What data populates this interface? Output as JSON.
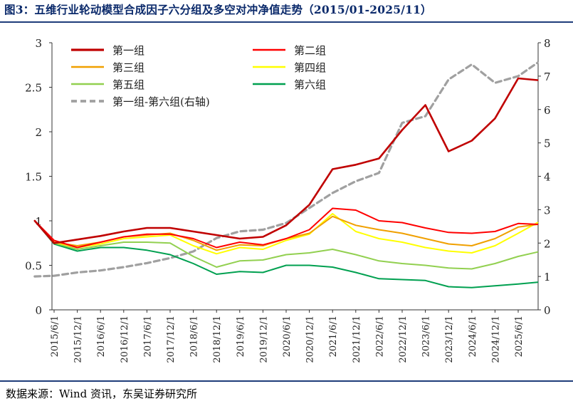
{
  "header": {
    "title": "图3：五维行业轮动模型合成因子六分组及多空对冲净值走势（2015/01-2025/11）"
  },
  "footer": {
    "source": "数据来源：Wind 资讯，东吴证券研究所"
  },
  "chart_data": {
    "type": "line",
    "title": "五维行业轮动模型合成因子六分组及多空对冲净值走势（2015/01-2025/11）",
    "y_left": {
      "range": [
        0,
        3
      ],
      "ticks": [
        "0",
        "0.5",
        "1",
        "1.5",
        "2",
        "2.5",
        "3"
      ]
    },
    "y_right": {
      "range": [
        0,
        8
      ],
      "ticks": [
        "0",
        "1",
        "2",
        "3",
        "4",
        "5",
        "6",
        "7",
        "8"
      ]
    },
    "x_tick_labels": [
      "2015/6/1",
      "2015/12/1",
      "2016/6/1",
      "2016/12/1",
      "2017/6/1",
      "2017/12/1",
      "2018/6/1",
      "2018/12/1",
      "2019/6/1",
      "2019/12/1",
      "2020/6/1",
      "2020/12/1",
      "2021/6/1",
      "2021/12/1",
      "2022/6/1",
      "2022/12/1",
      "2023/6/1",
      "2023/12/1",
      "2024/6/1",
      "2024/12/1",
      "2025/6/1"
    ],
    "x_months": [
      "2015/1",
      "2015/6",
      "2015/12",
      "2016/6",
      "2016/12",
      "2017/6",
      "2017/12",
      "2018/6",
      "2018/12",
      "2019/6",
      "2019/12",
      "2020/6",
      "2020/12",
      "2021/6",
      "2021/12",
      "2022/6",
      "2022/12",
      "2023/6",
      "2023/12",
      "2024/6",
      "2024/12",
      "2025/6",
      "2025/11"
    ],
    "legend_position": "top",
    "series": [
      {
        "name": "第一组",
        "axis": "left",
        "color": "#c00000",
        "width": 2.6,
        "dash": "",
        "values": [
          1.0,
          0.75,
          0.79,
          0.83,
          0.88,
          0.92,
          0.92,
          0.88,
          0.84,
          0.8,
          0.82,
          0.95,
          1.18,
          1.58,
          1.63,
          1.7,
          2.02,
          2.3,
          1.78,
          1.9,
          2.15,
          2.6,
          2.58
        ]
      },
      {
        "name": "第二组",
        "axis": "left",
        "color": "#ff0000",
        "width": 2.0,
        "dash": "",
        "values": [
          1.0,
          0.78,
          0.7,
          0.76,
          0.82,
          0.85,
          0.85,
          0.8,
          0.7,
          0.76,
          0.73,
          0.8,
          0.9,
          1.14,
          1.12,
          1.0,
          0.98,
          0.92,
          0.87,
          0.86,
          0.88,
          0.97,
          0.96
        ]
      },
      {
        "name": "第三组",
        "axis": "left",
        "color": "#f0a000",
        "width": 2.0,
        "dash": "",
        "values": [
          1.0,
          0.76,
          0.72,
          0.76,
          0.82,
          0.84,
          0.86,
          0.78,
          0.67,
          0.73,
          0.72,
          0.8,
          0.86,
          1.05,
          0.95,
          0.9,
          0.86,
          0.8,
          0.74,
          0.72,
          0.8,
          0.93,
          0.96
        ]
      },
      {
        "name": "第四组",
        "axis": "left",
        "color": "#ffff00",
        "width": 2.0,
        "dash": "",
        "values": [
          1.0,
          0.76,
          0.7,
          0.74,
          0.8,
          0.82,
          0.84,
          0.72,
          0.63,
          0.7,
          0.68,
          0.78,
          0.85,
          1.08,
          0.88,
          0.8,
          0.76,
          0.7,
          0.66,
          0.64,
          0.72,
          0.86,
          0.98
        ]
      },
      {
        "name": "第五组",
        "axis": "left",
        "color": "#92d050",
        "width": 2.0,
        "dash": "",
        "values": [
          1.0,
          0.75,
          0.68,
          0.72,
          0.76,
          0.76,
          0.75,
          0.6,
          0.48,
          0.55,
          0.56,
          0.62,
          0.64,
          0.68,
          0.62,
          0.55,
          0.52,
          0.5,
          0.47,
          0.46,
          0.52,
          0.6,
          0.65
        ]
      },
      {
        "name": "第六组",
        "axis": "left",
        "color": "#00a050",
        "width": 2.0,
        "dash": "",
        "values": [
          1.0,
          0.74,
          0.66,
          0.7,
          0.7,
          0.67,
          0.62,
          0.52,
          0.4,
          0.43,
          0.42,
          0.5,
          0.5,
          0.48,
          0.42,
          0.35,
          0.34,
          0.33,
          0.26,
          0.25,
          0.27,
          0.29,
          0.31
        ]
      },
      {
        "name": "第一组-第六组(右轴)",
        "axis": "right",
        "color": "#a0a0a0",
        "width": 3.2,
        "dash": "8 5",
        "values": [
          1.0,
          1.02,
          1.12,
          1.18,
          1.28,
          1.4,
          1.55,
          1.75,
          2.15,
          2.35,
          2.4,
          2.6,
          3.05,
          3.5,
          3.85,
          4.1,
          5.6,
          5.8,
          6.9,
          7.35,
          6.8,
          7.0,
          7.4
        ]
      }
    ]
  }
}
